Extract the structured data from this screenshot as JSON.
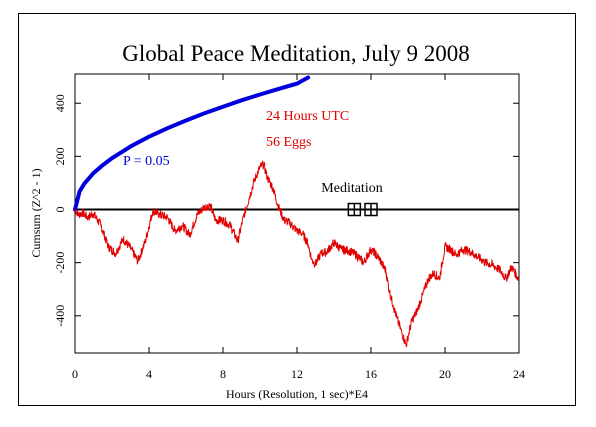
{
  "chart_data": {
    "type": "line",
    "title": "Global Peace Meditation, July 9 2008",
    "xlabel": "Hours (Resolution, 1 sec)*E4",
    "ylabel": "Cumsum (Z^2 - 1)",
    "xlim": [
      0,
      24
    ],
    "ylim": [
      -540,
      510
    ],
    "xticks": [
      0,
      4,
      8,
      12,
      16,
      20,
      24
    ],
    "yticks": [
      -400,
      -200,
      0,
      200,
      400
    ],
    "grid": false,
    "colors": {
      "cumsum": "#e00000",
      "probability": "#0000dd",
      "axis": "#000000"
    },
    "annotations": {
      "hours": "24 Hours UTC",
      "eggs": "56 Eggs",
      "p_label": "P = 0.05",
      "meditation": "Meditation"
    },
    "meditation_markers": [
      15.1,
      16.0
    ],
    "series": [
      {
        "kind": "probability_envelope",
        "x": [
          0,
          0.25,
          0.5,
          1,
          1.5,
          2,
          3,
          4,
          5,
          6,
          7,
          8,
          9,
          10,
          11,
          12,
          12.6
        ],
        "values": [
          0,
          68,
          97,
          137,
          167,
          193,
          237,
          274,
          306,
          335,
          362,
          387,
          411,
          433,
          454,
          474,
          497
        ]
      },
      {
        "kind": "cumsum",
        "x": [
          0,
          0.2,
          0.4,
          0.7,
          1.0,
          1.4,
          1.8,
          2.2,
          2.6,
          3.0,
          3.4,
          3.8,
          4.2,
          4.6,
          5.0,
          5.4,
          5.8,
          6.2,
          6.6,
          7.0,
          7.3,
          7.6,
          8.0,
          8.4,
          8.8,
          9.1,
          9.4,
          9.7,
          10.0,
          10.2,
          10.4,
          10.7,
          11.0,
          11.3,
          11.6,
          12.0,
          12.3,
          12.6,
          12.8,
          13.0,
          13.3,
          13.6,
          14.0,
          14.4,
          14.8,
          15.2,
          15.6,
          16.0,
          16.4,
          16.8,
          17.0,
          17.2,
          17.4,
          17.6,
          17.9,
          18.2,
          18.5,
          18.8,
          19.1,
          19.4,
          19.7,
          20.0,
          20.3,
          20.6,
          21.0,
          21.4,
          21.8,
          22.2,
          22.6,
          23.0,
          23.3,
          23.6,
          24.0
        ],
        "values": [
          0,
          -20,
          -12,
          -30,
          -15,
          -60,
          -140,
          -165,
          -110,
          -145,
          -195,
          -120,
          -5,
          -20,
          -30,
          -80,
          -60,
          -95,
          -20,
          10,
          15,
          -40,
          -40,
          -60,
          -120,
          -30,
          40,
          110,
          160,
          170,
          120,
          80,
          10,
          -40,
          -50,
          -80,
          -90,
          -130,
          -190,
          -205,
          -165,
          -160,
          -125,
          -150,
          -155,
          -170,
          -200,
          -150,
          -180,
          -230,
          -310,
          -360,
          -410,
          -450,
          -510,
          -420,
          -380,
          -320,
          -260,
          -240,
          -260,
          -140,
          -150,
          -170,
          -150,
          -160,
          -180,
          -200,
          -210,
          -230,
          -260,
          -215,
          -265
        ]
      }
    ]
  }
}
